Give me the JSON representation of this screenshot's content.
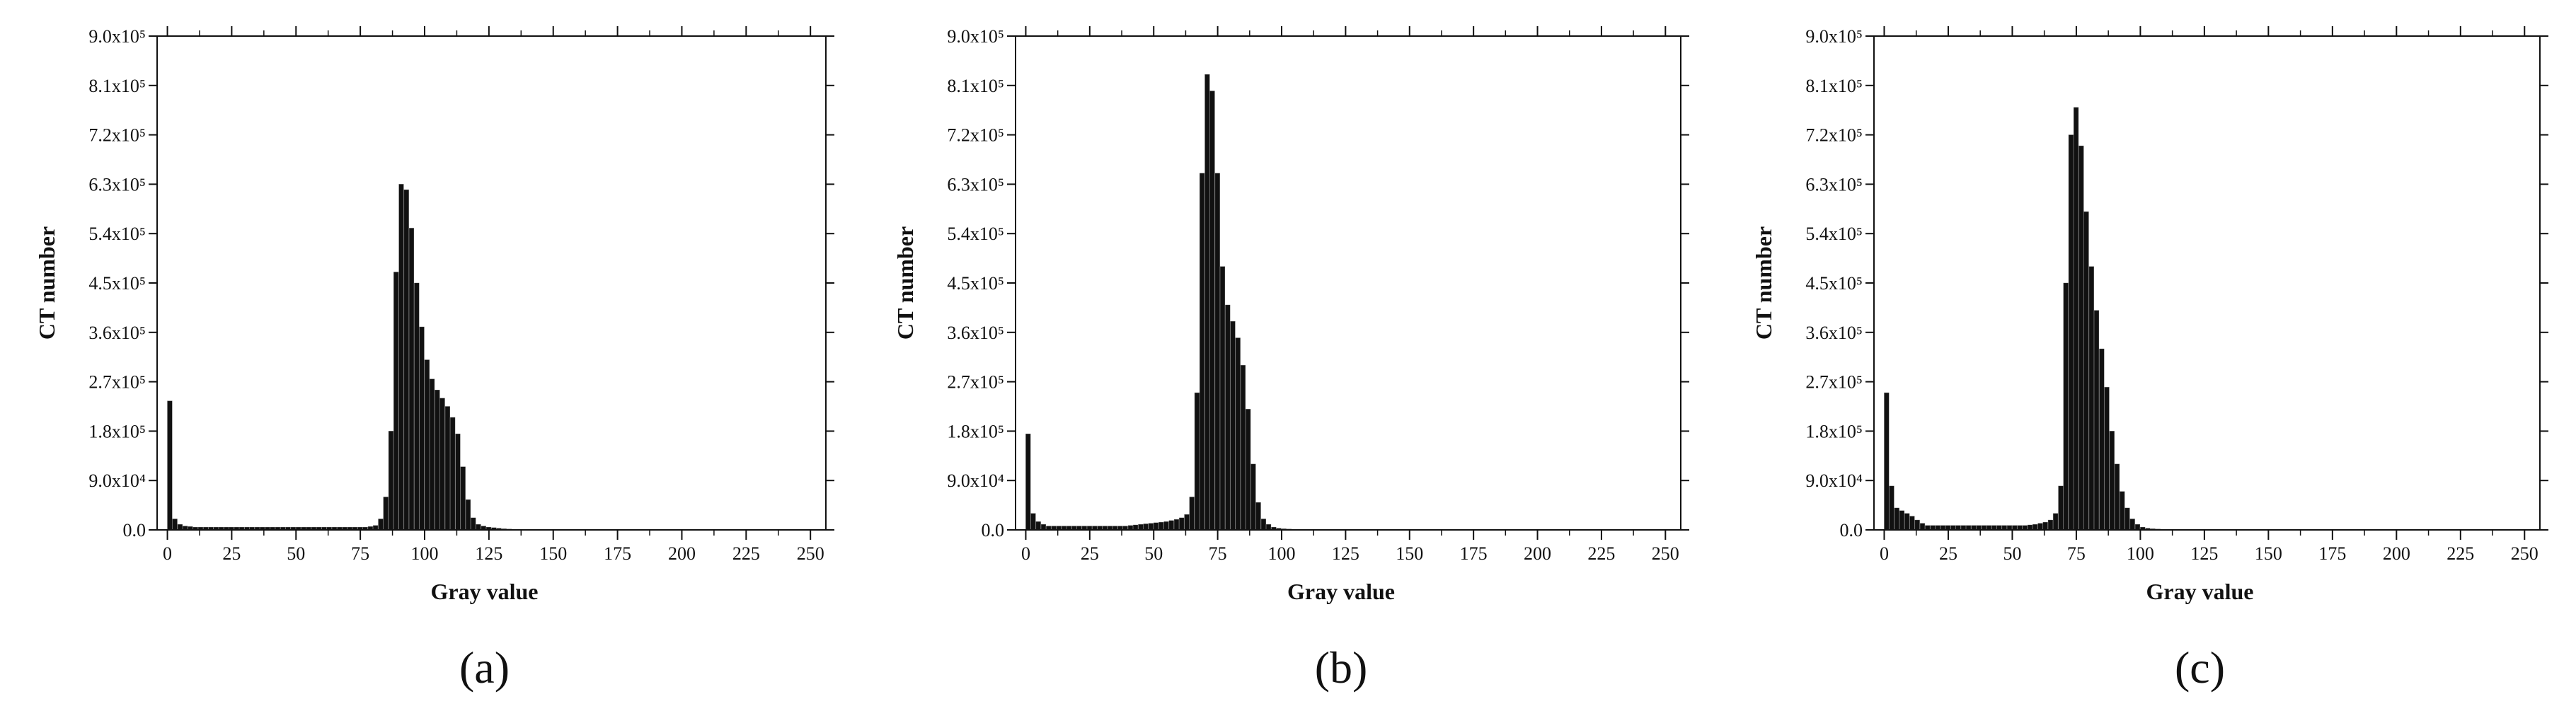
{
  "chart_data": [
    {
      "type": "bar",
      "panel_label": "(a)",
      "xlabel": "Gray value",
      "ylabel": "CT number",
      "color": "#111111",
      "xlim": [
        -4,
        256
      ],
      "ylim": [
        0,
        900000
      ],
      "xticks": [
        0,
        25,
        50,
        75,
        100,
        125,
        150,
        175,
        200,
        225,
        250
      ],
      "yticks": [
        {
          "value": 0,
          "label": "0.0"
        },
        {
          "value": 90000,
          "label": "9.0x10⁴"
        },
        {
          "value": 180000,
          "label": "1.8x10⁵"
        },
        {
          "value": 270000,
          "label": "2.7x10⁵"
        },
        {
          "value": 360000,
          "label": "3.6x10⁵"
        },
        {
          "value": 450000,
          "label": "4.5x10⁵"
        },
        {
          "value": 540000,
          "label": "5.4x10⁵"
        },
        {
          "value": 630000,
          "label": "6.3x10⁵"
        },
        {
          "value": 720000,
          "label": "7.2x10⁵"
        },
        {
          "value": 810000,
          "label": "8.1x10⁵"
        },
        {
          "value": 900000,
          "label": "9.0x10⁵"
        }
      ],
      "x": [
        0,
        2,
        4,
        6,
        8,
        10,
        12,
        14,
        16,
        18,
        20,
        22,
        24,
        26,
        28,
        30,
        32,
        34,
        36,
        38,
        40,
        42,
        44,
        46,
        48,
        50,
        52,
        54,
        56,
        58,
        60,
        62,
        64,
        66,
        68,
        70,
        72,
        74,
        76,
        78,
        80,
        82,
        84,
        86,
        88,
        90,
        92,
        94,
        96,
        98,
        100,
        102,
        104,
        106,
        108,
        110,
        112,
        114,
        116,
        118,
        120,
        122,
        124,
        126,
        128,
        130,
        132,
        134,
        136,
        138,
        140,
        142,
        144,
        146,
        148,
        150,
        152,
        154,
        156,
        158,
        160,
        162,
        164,
        166,
        168,
        170,
        172,
        174,
        176,
        178,
        180,
        182,
        184,
        186,
        188,
        190,
        192,
        194,
        196,
        198,
        200,
        202,
        204,
        206,
        208,
        210,
        212,
        214,
        216,
        218,
        220,
        222,
        224,
        226,
        228,
        230,
        232,
        234,
        236,
        238,
        240,
        242,
        244,
        246,
        248,
        250,
        252,
        254
      ],
      "values": [
        235000,
        20000,
        10000,
        7000,
        6000,
        5000,
        5000,
        5000,
        5000,
        5000,
        5000,
        5000,
        5000,
        5000,
        5000,
        5000,
        5000,
        5000,
        5000,
        5000,
        5000,
        5000,
        5000,
        5000,
        5000,
        5000,
        5000,
        5000,
        5000,
        5000,
        5000,
        5000,
        5000,
        5000,
        5000,
        5000,
        5000,
        5000,
        5000,
        6000,
        8000,
        20000,
        60000,
        180000,
        470000,
        630000,
        620000,
        550000,
        450000,
        370000,
        310000,
        275000,
        255000,
        240000,
        225000,
        205000,
        175000,
        115000,
        55000,
        22000,
        10000,
        7000,
        5000,
        4000,
        3000,
        2000,
        1500,
        1000,
        500,
        300,
        0,
        0,
        0,
        0,
        0,
        0,
        0,
        0,
        0,
        0,
        0,
        0,
        0,
        0,
        0,
        0,
        0,
        0,
        0,
        0,
        0,
        0,
        0,
        0,
        0,
        0,
        0,
        0,
        0,
        0,
        0,
        0,
        0,
        0,
        0,
        0,
        0,
        0,
        0,
        0,
        0,
        0,
        0,
        0,
        0,
        0,
        0,
        0,
        0,
        0,
        0,
        0,
        0,
        0,
        0,
        0,
        0,
        0
      ]
    },
    {
      "type": "bar",
      "panel_label": "(b)",
      "xlabel": "Gray value",
      "ylabel": "CT number",
      "color": "#111111",
      "xlim": [
        -4,
        256
      ],
      "ylim": [
        0,
        900000
      ],
      "xticks": [
        0,
        25,
        50,
        75,
        100,
        125,
        150,
        175,
        200,
        225,
        250
      ],
      "yticks": [
        {
          "value": 0,
          "label": "0.0"
        },
        {
          "value": 90000,
          "label": "9.0x10⁴"
        },
        {
          "value": 180000,
          "label": "1.8x10⁵"
        },
        {
          "value": 270000,
          "label": "2.7x10⁵"
        },
        {
          "value": 360000,
          "label": "3.6x10⁵"
        },
        {
          "value": 450000,
          "label": "4.5x10⁵"
        },
        {
          "value": 540000,
          "label": "5.4x10⁵"
        },
        {
          "value": 630000,
          "label": "6.3x10⁵"
        },
        {
          "value": 720000,
          "label": "7.2x10⁵"
        },
        {
          "value": 810000,
          "label": "8.1x10⁵"
        },
        {
          "value": 900000,
          "label": "9.0x10⁵"
        }
      ],
      "x": [
        0,
        2,
        4,
        6,
        8,
        10,
        12,
        14,
        16,
        18,
        20,
        22,
        24,
        26,
        28,
        30,
        32,
        34,
        36,
        38,
        40,
        42,
        44,
        46,
        48,
        50,
        52,
        54,
        56,
        58,
        60,
        62,
        64,
        66,
        68,
        70,
        72,
        74,
        76,
        78,
        80,
        82,
        84,
        86,
        88,
        90,
        92,
        94,
        96,
        98,
        100,
        102,
        104,
        106,
        108,
        110,
        112,
        114,
        116,
        118,
        120,
        122,
        124,
        126,
        128,
        130,
        132,
        134,
        136,
        138,
        140,
        142,
        144,
        146,
        148,
        150,
        152,
        154,
        156,
        158,
        160,
        162,
        164,
        166,
        168,
        170,
        172,
        174,
        176,
        178,
        180,
        182,
        184,
        186,
        188,
        190,
        192,
        194,
        196,
        198,
        200,
        202,
        204,
        206,
        208,
        210,
        212,
        214,
        216,
        218,
        220,
        222,
        224,
        226,
        228,
        230,
        232,
        234,
        236,
        238,
        240,
        242,
        244,
        246,
        248,
        250,
        252,
        254
      ],
      "values": [
        175000,
        30000,
        15000,
        10000,
        7000,
        7000,
        7000,
        7000,
        7000,
        7000,
        7000,
        7000,
        7000,
        7000,
        7000,
        7000,
        7000,
        7000,
        7000,
        7000,
        8000,
        9000,
        10000,
        11000,
        12000,
        13000,
        14000,
        15000,
        17000,
        19000,
        22000,
        28000,
        60000,
        250000,
        650000,
        830000,
        800000,
        650000,
        480000,
        410000,
        380000,
        350000,
        300000,
        220000,
        120000,
        50000,
        20000,
        10000,
        5000,
        3000,
        2000,
        1500,
        1000,
        700,
        400,
        200,
        0,
        0,
        0,
        0,
        0,
        0,
        0,
        0,
        0,
        0,
        0,
        0,
        0,
        0,
        0,
        0,
        0,
        0,
        0,
        0,
        0,
        0,
        0,
        0,
        0,
        0,
        0,
        0,
        0,
        0,
        0,
        0,
        0,
        0,
        0,
        0,
        0,
        0,
        0,
        0,
        0,
        0,
        0,
        0,
        0,
        0,
        0,
        0,
        0,
        0,
        0,
        0,
        0,
        0,
        0,
        0,
        0,
        0,
        0,
        0,
        0,
        0,
        0,
        0,
        0,
        0,
        0,
        0,
        0,
        0,
        0,
        0
      ]
    },
    {
      "type": "bar",
      "panel_label": "(c)",
      "xlabel": "Gray value",
      "ylabel": "CT number",
      "color": "#111111",
      "xlim": [
        -4,
        256
      ],
      "ylim": [
        0,
        900000
      ],
      "xticks": [
        0,
        25,
        50,
        75,
        100,
        125,
        150,
        175,
        200,
        225,
        250
      ],
      "yticks": [
        {
          "value": 0,
          "label": "0.0"
        },
        {
          "value": 90000,
          "label": "9.0x10⁴"
        },
        {
          "value": 180000,
          "label": "1.8x10⁵"
        },
        {
          "value": 270000,
          "label": "2.7x10⁵"
        },
        {
          "value": 360000,
          "label": "3.6x10⁵"
        },
        {
          "value": 450000,
          "label": "4.5x10⁵"
        },
        {
          "value": 540000,
          "label": "5.4x10⁵"
        },
        {
          "value": 630000,
          "label": "6.3x10⁵"
        },
        {
          "value": 720000,
          "label": "7.2x10⁵"
        },
        {
          "value": 810000,
          "label": "8.1x10⁵"
        },
        {
          "value": 900000,
          "label": "9.0x10⁵"
        }
      ],
      "x": [
        0,
        2,
        4,
        6,
        8,
        10,
        12,
        14,
        16,
        18,
        20,
        22,
        24,
        26,
        28,
        30,
        32,
        34,
        36,
        38,
        40,
        42,
        44,
        46,
        48,
        50,
        52,
        54,
        56,
        58,
        60,
        62,
        64,
        66,
        68,
        70,
        72,
        74,
        76,
        78,
        80,
        82,
        84,
        86,
        88,
        90,
        92,
        94,
        96,
        98,
        100,
        102,
        104,
        106,
        108,
        110,
        112,
        114,
        116,
        118,
        120,
        122,
        124,
        126,
        128,
        130,
        132,
        134,
        136,
        138,
        140,
        142,
        144,
        146,
        148,
        150,
        152,
        154,
        156,
        158,
        160,
        162,
        164,
        166,
        168,
        170,
        172,
        174,
        176,
        178,
        180,
        182,
        184,
        186,
        188,
        190,
        192,
        194,
        196,
        198,
        200,
        202,
        204,
        206,
        208,
        210,
        212,
        214,
        216,
        218,
        220,
        222,
        224,
        226,
        228,
        230,
        232,
        234,
        236,
        238,
        240,
        242,
        244,
        246,
        248,
        250,
        252,
        254
      ],
      "values": [
        250000,
        80000,
        40000,
        35000,
        30000,
        25000,
        18000,
        12000,
        8000,
        8000,
        8000,
        8000,
        8000,
        8000,
        8000,
        8000,
        8000,
        8000,
        8000,
        8000,
        8000,
        8000,
        8000,
        8000,
        8000,
        8000,
        8000,
        8000,
        9000,
        10000,
        12000,
        14000,
        18000,
        30000,
        80000,
        450000,
        720000,
        770000,
        700000,
        580000,
        480000,
        400000,
        330000,
        260000,
        180000,
        120000,
        70000,
        40000,
        20000,
        10000,
        5000,
        3000,
        2000,
        1500,
        1000,
        500,
        200,
        0,
        0,
        0,
        0,
        0,
        0,
        0,
        0,
        0,
        0,
        0,
        0,
        0,
        0,
        0,
        0,
        0,
        0,
        0,
        0,
        0,
        0,
        0,
        0,
        0,
        0,
        0,
        0,
        0,
        0,
        0,
        0,
        0,
        0,
        0,
        0,
        0,
        0,
        0,
        0,
        0,
        0,
        0,
        0,
        0,
        0,
        0,
        0,
        0,
        0,
        0,
        0,
        0,
        0,
        0,
        0,
        0,
        0,
        0,
        0,
        0,
        0,
        0,
        0,
        0,
        0,
        0,
        0,
        0,
        0,
        0
      ]
    }
  ]
}
